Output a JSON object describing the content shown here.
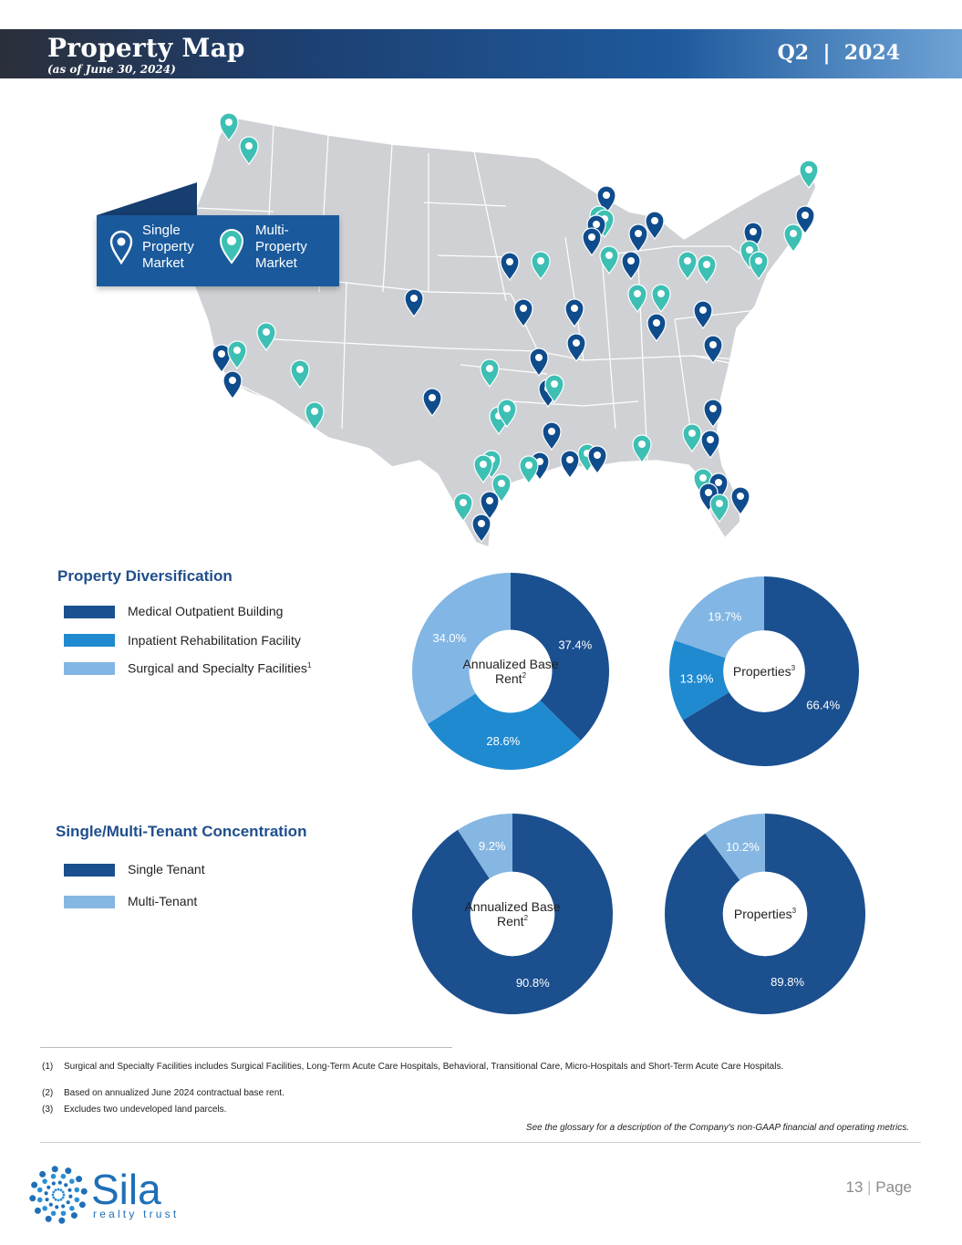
{
  "header": {
    "title": "Property Map",
    "subtitle": "(as of June 30, 2024)",
    "quarter": "Q2",
    "year": "2024"
  },
  "map_legend": {
    "single": "Single Property Market",
    "multi": "Multi-Property Market",
    "colors": {
      "single": "#0f4c8c",
      "multi": "#3dbfb4"
    }
  },
  "diversification": {
    "heading": "Property Diversification",
    "legend": [
      {
        "label": "Medical Outpatient Building",
        "color": "#1b5090"
      },
      {
        "label": "Inpatient Rehabilitation Facility",
        "color": "#1f8ad0"
      },
      {
        "label": "Surgical and Specialty Facilities",
        "sup": "1",
        "color": "#82b6e4"
      }
    ]
  },
  "tenant": {
    "heading": "Single/Multi-Tenant Concentration",
    "legend": [
      {
        "label": "Single Tenant",
        "color": "#1b4f8e"
      },
      {
        "label": "Multi-Tenant",
        "color": "#86b7e2"
      }
    ]
  },
  "chart_data": [
    {
      "type": "pie",
      "center_label": "Annualized Base Rent",
      "center_sup": "2",
      "labels": [
        "Medical Outpatient Building",
        "Inpatient Rehabilitation Facility",
        "Surgical and Specialty Facilities"
      ],
      "values": [
        37.4,
        28.6,
        34.0
      ],
      "value_labels": [
        "37.4%",
        "28.6%",
        "34.0%"
      ],
      "colors": [
        "#1b5090",
        "#1f8ad0",
        "#82b6e4"
      ]
    },
    {
      "type": "pie",
      "center_label": "Properties",
      "center_sup": "3",
      "labels": [
        "Medical Outpatient Building",
        "Inpatient Rehabilitation Facility",
        "Surgical and Specialty Facilities"
      ],
      "values": [
        66.4,
        13.9,
        19.7
      ],
      "value_labels": [
        "66.4%",
        "13.9%",
        "19.7%"
      ],
      "colors": [
        "#1b5090",
        "#1f8ad0",
        "#82b6e4"
      ]
    },
    {
      "type": "pie",
      "center_label": "Annualized Base Rent",
      "center_sup": "2",
      "labels": [
        "Single Tenant",
        "Multi-Tenant"
      ],
      "values": [
        90.8,
        9.2
      ],
      "value_labels": [
        "90.8%",
        "9.2%"
      ],
      "colors": [
        "#1b4f8e",
        "#86b7e2"
      ]
    },
    {
      "type": "pie",
      "center_label": "Properties",
      "center_sup": "3",
      "labels": [
        "Single Tenant",
        "Multi-Tenant"
      ],
      "values": [
        89.8,
        10.2
      ],
      "value_labels": [
        "89.8%",
        "10.2%"
      ],
      "colors": [
        "#1b4f8e",
        "#86b7e2"
      ]
    }
  ],
  "footnotes": [
    {
      "num": "(1)",
      "text": "Surgical and Specialty Facilities includes Surgical Facilities, Long-Term Acute Care Hospitals, Behavioral, Transitional Care, Micro-Hospitals and Short-Term Acute Care Hospitals."
    },
    {
      "num": "(2)",
      "text": "Based on annualized June 2024 contractual base rent."
    },
    {
      "num": "(3)",
      "text": "Excludes two undeveloped land parcels."
    }
  ],
  "glossary_note": "See the glossary for a description of the Company's non-GAAP financial and operating metrics.",
  "logo": {
    "name": "Sila",
    "tagline": "realty trust"
  },
  "page": {
    "number": "13",
    "label": "Page"
  }
}
